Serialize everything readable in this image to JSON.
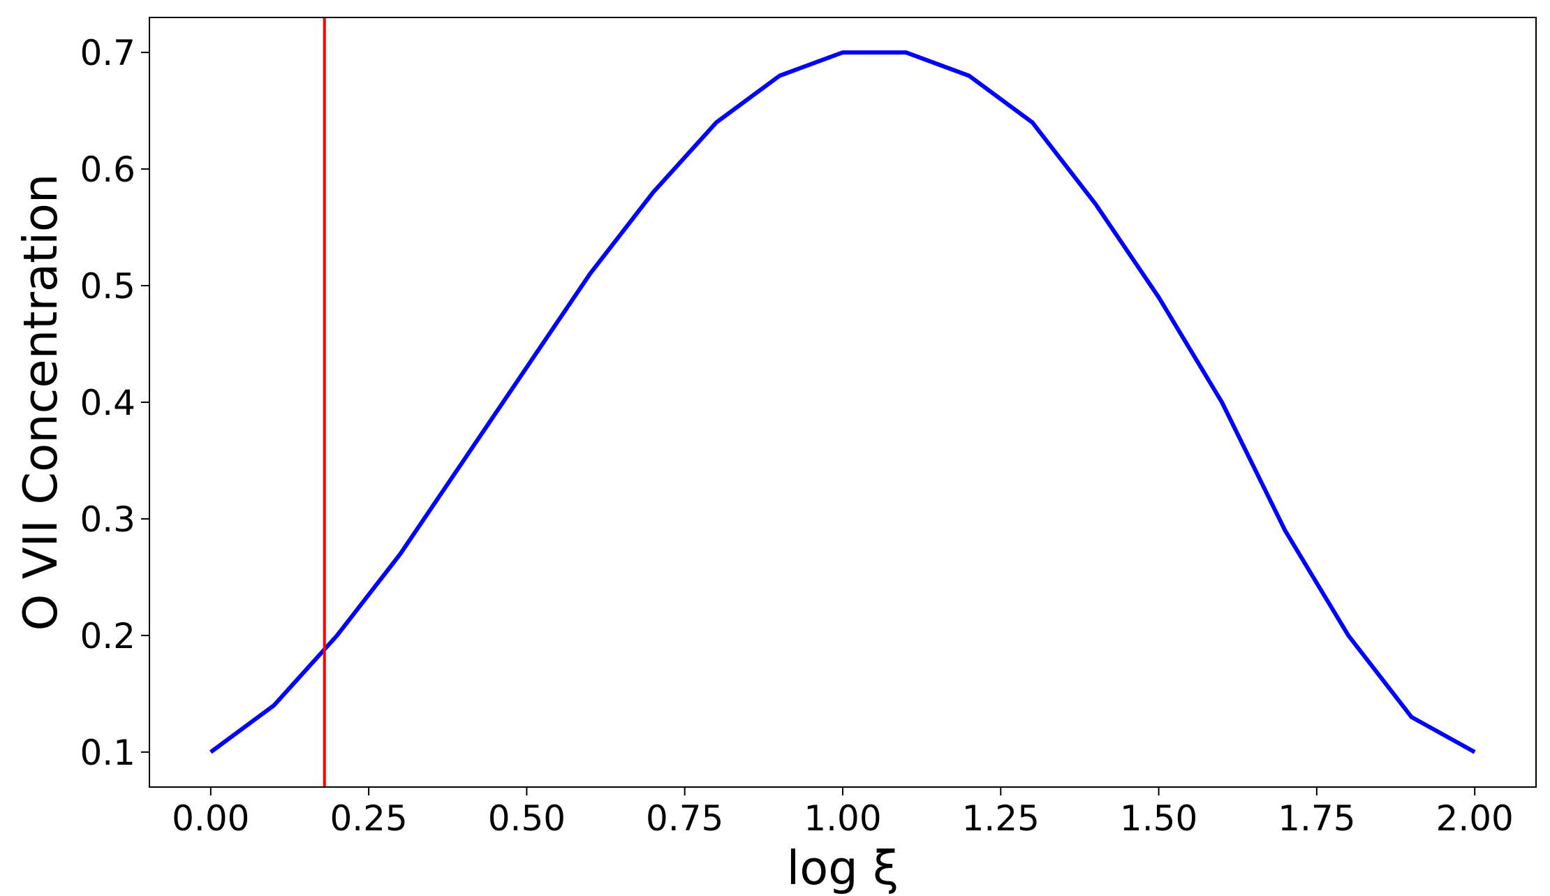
{
  "chart_data": {
    "type": "line",
    "title": "",
    "xlabel": "log ξ",
    "ylabel": "O VII Concentration",
    "xlim": [
      -0.097,
      2.097
    ],
    "ylim": [
      0.07,
      0.73
    ],
    "x_ticks": [
      0.0,
      0.25,
      0.5,
      0.75,
      1.0,
      1.25,
      1.5,
      1.75,
      2.0
    ],
    "x_tick_labels": [
      "0.00",
      "0.25",
      "0.50",
      "0.75",
      "1.00",
      "1.25",
      "1.50",
      "1.75",
      "2.00"
    ],
    "y_ticks": [
      0.1,
      0.2,
      0.3,
      0.4,
      0.5,
      0.6,
      0.7
    ],
    "y_tick_labels": [
      "0.1",
      "0.2",
      "0.3",
      "0.4",
      "0.5",
      "0.6",
      "0.7"
    ],
    "grid": false,
    "legend": "none",
    "series": [
      {
        "color": "#0000ff",
        "x": [
          0.0,
          0.1,
          0.2,
          0.3,
          0.4,
          0.5,
          0.6,
          0.7,
          0.8,
          0.9,
          1.0,
          1.1,
          1.2,
          1.3,
          1.4,
          1.5,
          1.6,
          1.7,
          1.8,
          1.9,
          2.0
        ],
        "y": [
          0.1,
          0.14,
          0.2,
          0.27,
          0.35,
          0.43,
          0.51,
          0.58,
          0.64,
          0.68,
          0.7,
          0.7,
          0.68,
          0.64,
          0.57,
          0.49,
          0.4,
          0.29,
          0.2,
          0.13,
          0.1
        ]
      }
    ],
    "vertical_lines": [
      {
        "x": 0.18,
        "color": "#ff0000"
      }
    ]
  }
}
